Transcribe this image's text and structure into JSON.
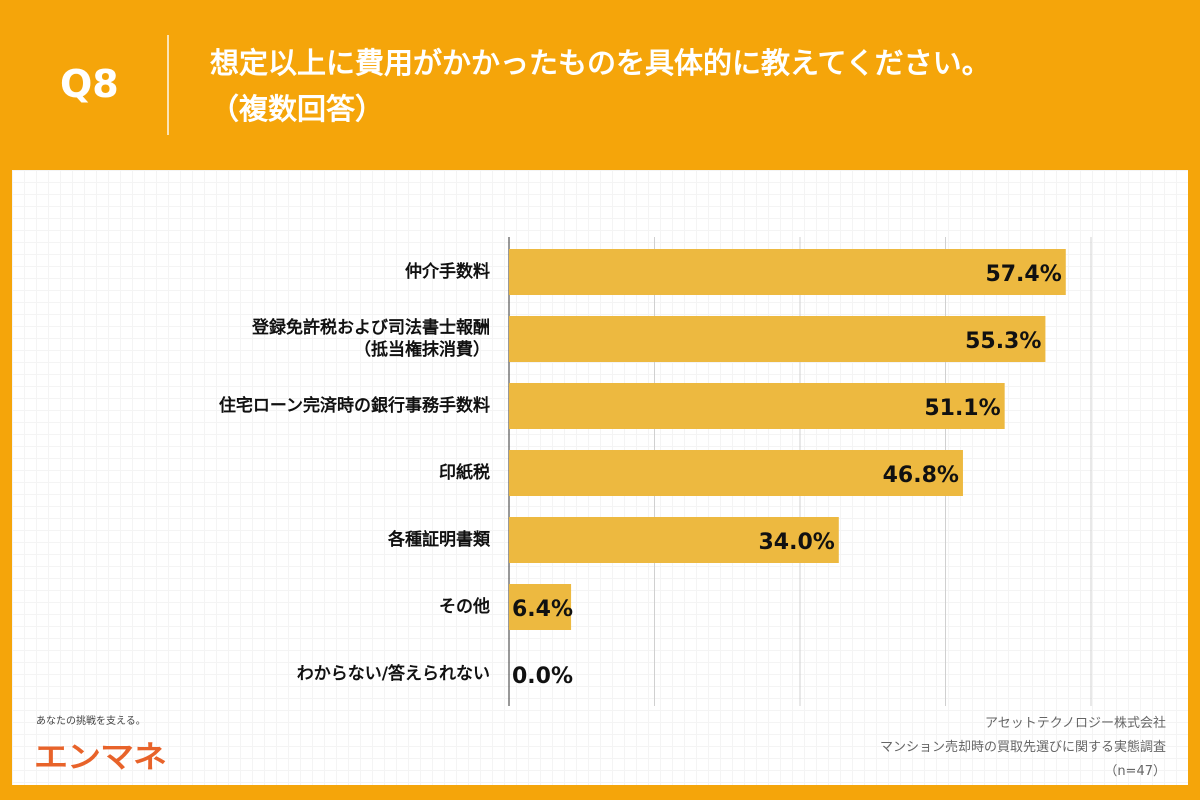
{
  "header": {
    "q_label": "Q8",
    "title_line1": "想定以上に費用がかかったものを具体的に教えてください。",
    "title_line2": "（複数回答）"
  },
  "colors": {
    "frame": "#F5A50A",
    "bar": "#EDB940",
    "logo": "#E8632A"
  },
  "chart_data": {
    "type": "bar",
    "orientation": "horizontal",
    "categories": [
      "仲介手数料",
      "登録免許税および司法書士報酬\n（抵当権抹消費）",
      "住宅ローン完済時の銀行事務手数料",
      "印紙税",
      "各種証明書類",
      "その他",
      "わからない/答えられない"
    ],
    "values": [
      57.4,
      55.3,
      51.1,
      46.8,
      34.0,
      6.4,
      0.0
    ],
    "value_labels": [
      "57.4%",
      "55.3%",
      "51.1%",
      "46.8%",
      "34.0%",
      "6.4%",
      "0.0%"
    ],
    "xlim": [
      0,
      60
    ],
    "gridlines": [
      15,
      30,
      45,
      60
    ],
    "grid": true
  },
  "footer": {
    "tagline": "あなたの挑戦を支える。",
    "logo": "エンマネ",
    "source1": "アセットテクノロジー株式会社",
    "source2": "マンション売却時の買取先選びに関する実態調査",
    "n": "（n=47）"
  }
}
